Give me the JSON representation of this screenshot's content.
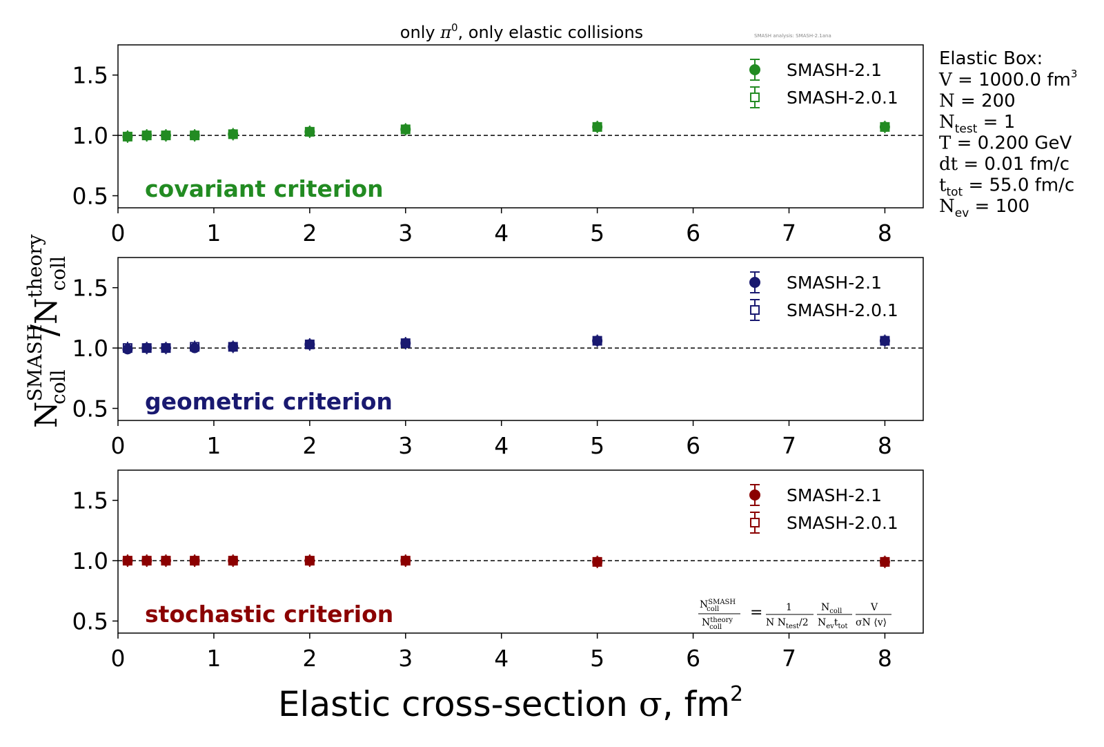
{
  "figure": {
    "title": "only π⁰, only elastic collisions",
    "title_prefix": "only ",
    "title_symbol": "π",
    "title_sup": "0",
    "title_suffix": ", only elastic collisions",
    "watermark": "SMASH analysis: SMASH-2.1ana",
    "xlabel_text": "Elastic cross-section ",
    "xlabel_symbol": "σ",
    "xlabel_unit": ", fm",
    "xlabel_sup": "2",
    "ylabel": {
      "n1": "N",
      "n1_sup": "SMASH",
      "n1_sub": "coll",
      "slash": "/",
      "n2": "N",
      "n2_sup": "theory",
      "n2_sub": "coll"
    }
  },
  "info_box": {
    "heading": "Elastic Box:",
    "lines": [
      {
        "sym": "V",
        "sub": "",
        "sup": "3",
        "text": " = 1000.0 fm"
      },
      {
        "sym": "N",
        "sub": "",
        "sup": "",
        "text": " = 200"
      },
      {
        "sym": "N",
        "sub": "test",
        "sup": "",
        "text": " = 1"
      },
      {
        "sym": "T",
        "sub": "",
        "sup": "",
        "text": " = 0.200 GeV"
      },
      {
        "sym": "dt",
        "sub": "",
        "sup": "",
        "text": " = 0.01 fm/c"
      },
      {
        "sym": "t",
        "sub": "tot",
        "sup": "",
        "text": " = 55.0 fm/c"
      },
      {
        "sym": "N",
        "sub": "ev",
        "sup": "",
        "text": " = 100"
      }
    ]
  },
  "formula": {
    "lhs_num": "N",
    "lhs_num_sup": "SMASH",
    "lhs_num_sub": "coll",
    "lhs_den": "N",
    "lhs_den_sup": "theory",
    "lhs_den_sub": "coll",
    "eq": "=",
    "f1_num": "1",
    "f1_den": "N N",
    "f1_den_sub": "test",
    "f1_den_tail": "/2",
    "f2_num": "N",
    "f2_num_sub": "coll",
    "f2_den": "N",
    "f2_den_sub": "ev",
    "f2_den_mid": "t",
    "f2_den_sub2": "tot",
    "f3_num": "V",
    "f3_den": "σN ⟨v⟩"
  },
  "colors": {
    "covariant": "#228B22",
    "geometric": "#191970",
    "stochastic": "#8B0000"
  },
  "chart_data": [
    {
      "type": "scatter",
      "panel": "covariant",
      "label": "covariant criterion",
      "xlim": [
        0,
        8.4
      ],
      "ylim": [
        0.4,
        1.75
      ],
      "xticks": [
        "0",
        "1",
        "2",
        "3",
        "4",
        "5",
        "6",
        "7",
        "8"
      ],
      "yticks": [
        "0.5",
        "1.0",
        "1.5"
      ],
      "reference_line": 1.0,
      "legend": [
        "SMASH-2.1",
        "SMASH-2.0.1"
      ],
      "series": [
        {
          "name": "SMASH-2.1",
          "marker": "filled-circle",
          "x": [
            0.1,
            0.3,
            0.5,
            0.8,
            1.2,
            2,
            3,
            5,
            8
          ],
          "y": [
            0.99,
            1.0,
            1.0,
            1.0,
            1.01,
            1.03,
            1.05,
            1.07,
            1.07
          ]
        },
        {
          "name": "SMASH-2.0.1",
          "marker": "open-square",
          "x": [
            0.1,
            0.3,
            0.5,
            0.8,
            1.2,
            2,
            3,
            5,
            8
          ],
          "y": [
            0.99,
            1.0,
            1.0,
            1.0,
            1.01,
            1.03,
            1.05,
            1.07,
            1.07
          ]
        }
      ]
    },
    {
      "type": "scatter",
      "panel": "geometric",
      "label": "geometric criterion",
      "xlim": [
        0,
        8.4
      ],
      "ylim": [
        0.4,
        1.75
      ],
      "xticks": [
        "0",
        "1",
        "2",
        "3",
        "4",
        "5",
        "6",
        "7",
        "8"
      ],
      "yticks": [
        "0.5",
        "1.0",
        "1.5"
      ],
      "reference_line": 1.0,
      "legend": [
        "SMASH-2.1",
        "SMASH-2.0.1"
      ],
      "series": [
        {
          "name": "SMASH-2.1",
          "marker": "filled-circle",
          "x": [
            0.1,
            0.3,
            0.5,
            0.8,
            1.2,
            2,
            3,
            5,
            8
          ],
          "y": [
            0.99,
            1.0,
            1.0,
            1.0,
            1.01,
            1.03,
            1.04,
            1.06,
            1.06
          ]
        },
        {
          "name": "SMASH-2.0.1",
          "marker": "open-square",
          "x": [
            0.1,
            0.3,
            0.5,
            0.8,
            1.2,
            2,
            3,
            5,
            8
          ],
          "y": [
            1.0,
            1.0,
            1.0,
            1.01,
            1.01,
            1.03,
            1.04,
            1.06,
            1.06
          ]
        }
      ]
    },
    {
      "type": "scatter",
      "panel": "stochastic",
      "label": "stochastic criterion",
      "xlim": [
        0,
        8.4
      ],
      "ylim": [
        0.4,
        1.75
      ],
      "xticks": [
        "0",
        "1",
        "2",
        "3",
        "4",
        "5",
        "6",
        "7",
        "8"
      ],
      "yticks": [
        "0.5",
        "1.0",
        "1.5"
      ],
      "reference_line": 1.0,
      "legend": [
        "SMASH-2.1",
        "SMASH-2.0.1"
      ],
      "series": [
        {
          "name": "SMASH-2.1",
          "marker": "filled-circle",
          "x": [
            0.1,
            0.3,
            0.5,
            0.8,
            1.2,
            2,
            3,
            5,
            8
          ],
          "y": [
            1.0,
            1.0,
            1.0,
            1.0,
            1.0,
            1.0,
            1.0,
            0.99,
            0.99
          ]
        },
        {
          "name": "SMASH-2.0.1",
          "marker": "open-square",
          "x": [
            0.1,
            0.3,
            0.5,
            0.8,
            1.2,
            2,
            3,
            5,
            8
          ],
          "y": [
            1.0,
            1.0,
            1.0,
            1.0,
            1.0,
            1.0,
            1.0,
            0.99,
            0.99
          ]
        }
      ]
    }
  ]
}
